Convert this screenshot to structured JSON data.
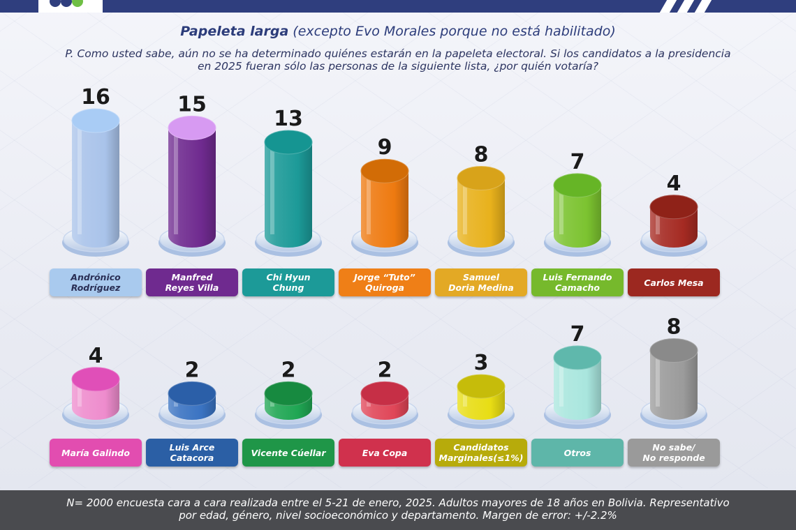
{
  "header": {
    "title_bold": "Papeleta larga",
    "title_rest": " (excepto Evo Morales porque no está habilitado)",
    "question": "P. Como usted sabe, aún no se ha determinado quiénes estarán en la papeleta electoral. Si los candidatos a la presidencia en 2025 fueran sólo las personas de la siguiente lista, ¿por quién votaría?"
  },
  "footer": {
    "line1": "N= 2000 encuesta cara a cara realizada entre el 5-21 de enero, 2025. Adultos mayores de 18 años en Bolivia. Representativo",
    "line2": "por edad, género, nivel socioeconómico y departamento. Margen de error: +/-2.2%"
  },
  "colors": {
    "header_bar": "#2f3e7e",
    "footer_bar": "#4a4b4f"
  },
  "chart_data": {
    "type": "bar",
    "style": "3d-cylinders",
    "rows": [
      {
        "categories": [
          "Andrónico\nRodríguez",
          "Manfred\nReyes Villa",
          "Chi Hyun\nChung",
          "Jorge “Tuto”\nQuiroga",
          "Samuel\nDoria Medina",
          "Luis Fernando\nCamacho",
          "Carlos Mesa"
        ],
        "values": [
          16,
          15,
          13,
          9,
          8,
          7,
          4
        ],
        "colors": [
          "#a9c3ea",
          "#6f2a8f",
          "#1c9a98",
          "#ee7a10",
          "#e8b11c",
          "#7cc330",
          "#a52a22"
        ],
        "cap_colors": [
          "#a9ccf5",
          "#d79af2",
          "#159592",
          "#d26c06",
          "#d8a31a",
          "#66b526",
          "#8f2218"
        ],
        "label_colors": [
          "#a9caee",
          "#6f2a8f",
          "#1c9a98",
          "#ef7f17",
          "#e3a925",
          "#76b92c",
          "#9c2820"
        ],
        "dark_labels": [
          true,
          false,
          false,
          false,
          false,
          false,
          false
        ]
      },
      {
        "categories": [
          "María Galindo",
          "Luis Arce\nCatacora",
          "Vicente Cúellar",
          "Eva Copa",
          "Candidatos\nMarginales(≤1%)",
          "Otros",
          "No sabe/\nNo responde"
        ],
        "values": [
          4,
          2,
          2,
          2,
          3,
          7,
          8
        ],
        "colors": [
          "#ee8ccd",
          "#3a73c2",
          "#1fa653",
          "#e04658",
          "#e8dd14",
          "#a9e6de",
          "#9b9b9b"
        ],
        "cap_colors": [
          "#e04fb8",
          "#2b5fa8",
          "#178a40",
          "#c62f46",
          "#c6bc0a",
          "#5fb8ac",
          "#8a8a8a"
        ],
        "label_colors": [
          "#e24db0",
          "#2b5fa5",
          "#1f9648",
          "#d0314d",
          "#b7ab0b",
          "#5eb6a9",
          "#9a9a9a"
        ],
        "dark_labels": [
          false,
          false,
          false,
          false,
          false,
          false,
          false
        ]
      }
    ]
  }
}
